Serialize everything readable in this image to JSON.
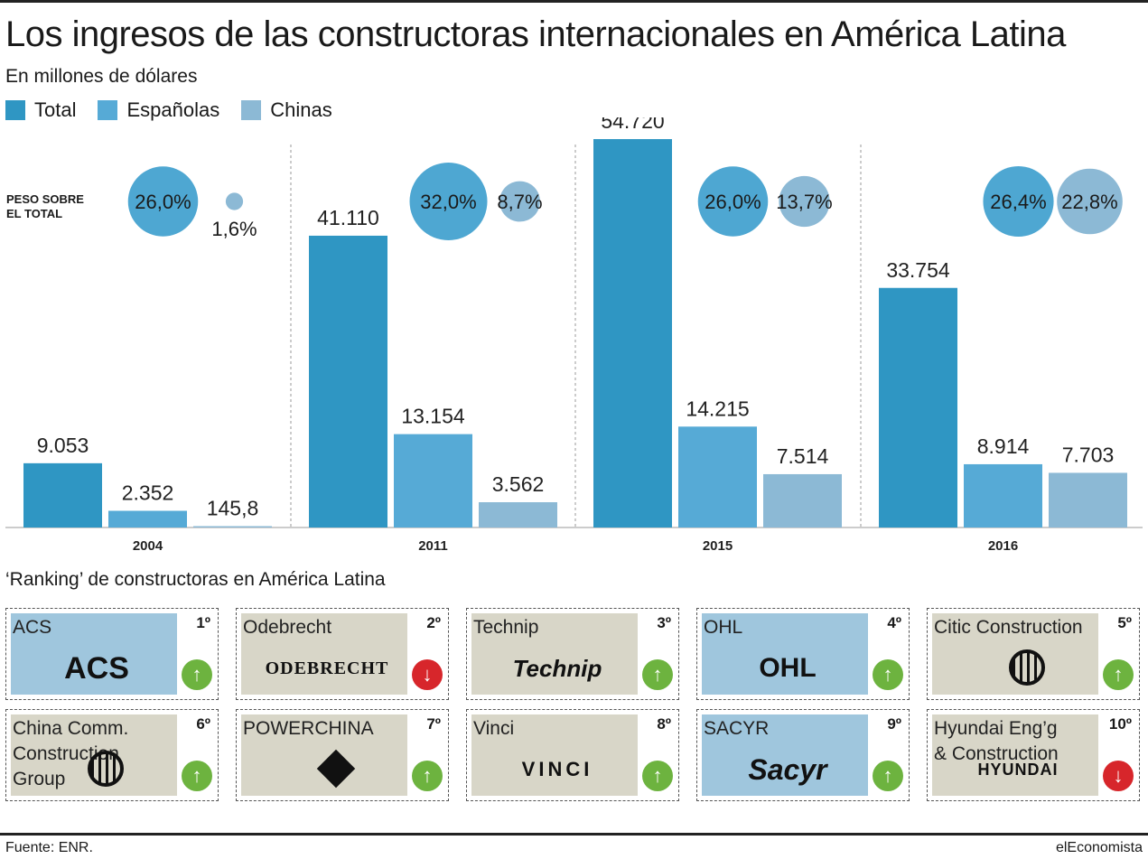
{
  "title": "Los ingresos de las constructoras internacionales en América Latina",
  "subtitle": "En millones de dólares",
  "legend": [
    {
      "label": "Total",
      "color": "#2f96c3"
    },
    {
      "label": "Españolas",
      "color": "#56aad6"
    },
    {
      "label": "Chinas",
      "color": "#8cb9d5"
    }
  ],
  "peso_label": "PESO SOBRE\nEL TOTAL",
  "chart_data": {
    "type": "bar",
    "title": "Los ingresos de las constructoras internacionales en América Latina",
    "ylabel": "En millones de dólares",
    "categories": [
      "2004",
      "2011",
      "2015",
      "2016"
    ],
    "series": [
      {
        "name": "Total",
        "values": [
          9053,
          41110,
          54720,
          33754
        ],
        "labels": [
          "9.053",
          "41.110",
          "54.720",
          "33.754"
        ]
      },
      {
        "name": "Españolas",
        "values": [
          2352,
          13154,
          14215,
          8914
        ],
        "labels": [
          "2.352",
          "13.154",
          "14.215",
          "8.914"
        ]
      },
      {
        "name": "Chinas",
        "values": [
          145.8,
          3562,
          7514,
          7703
        ],
        "labels": [
          "145,8",
          "3.562",
          "7.514",
          "7.703"
        ]
      }
    ],
    "share": {
      "label": "PESO SOBRE EL TOTAL",
      "espanolas": [
        26.0,
        32.0,
        26.0,
        26.4
      ],
      "espanolas_labels": [
        "26,0%",
        "32,0%",
        "26,0%",
        "26,4%"
      ],
      "chinas": [
        1.6,
        8.7,
        13.7,
        22.8
      ],
      "chinas_labels": [
        "1,6%",
        "8,7%",
        "13,7%",
        "22,8%"
      ]
    },
    "ylim": [
      0,
      54720
    ]
  },
  "ranking": {
    "title": "‘Ranking’ de constructoras en América Latina",
    "items": [
      {
        "name": "ACS",
        "rank": "1º",
        "trend": "up",
        "logo": "ACS",
        "highlight": true
      },
      {
        "name": "Odebrecht",
        "rank": "2º",
        "trend": "down",
        "logo": "ODEBRECHT",
        "highlight": false
      },
      {
        "name": "Technip",
        "rank": "3º",
        "trend": "up",
        "logo": "Technip",
        "highlight": false
      },
      {
        "name": "OHL",
        "rank": "4º",
        "trend": "up",
        "logo": "OHL",
        "highlight": true
      },
      {
        "name": "Citic Construction",
        "rank": "5º",
        "trend": "up",
        "logo": "",
        "highlight": false
      },
      {
        "name": "China Comm.\nConstruction\nGroup",
        "rank": "6º",
        "trend": "up",
        "logo": "",
        "highlight": false
      },
      {
        "name": "POWERCHINA",
        "rank": "7º",
        "trend": "up",
        "logo": "",
        "highlight": false
      },
      {
        "name": "Vinci",
        "rank": "8º",
        "trend": "up",
        "logo": "VINCI",
        "highlight": false
      },
      {
        "name": "SACYR",
        "rank": "9º",
        "trend": "up",
        "logo": "Sacyr",
        "highlight": true
      },
      {
        "name": "Hyundai Eng’g\n& Construction",
        "rank": "10º",
        "trend": "down",
        "logo": "HYUNDAI",
        "highlight": false
      }
    ]
  },
  "colors": {
    "up": "#6db33f",
    "down": "#d7262b",
    "card_bg": "#d8d6c8",
    "card_highlight": "#9fc6dd"
  },
  "source": "Fuente: ENR.",
  "brand": "elEconomista"
}
